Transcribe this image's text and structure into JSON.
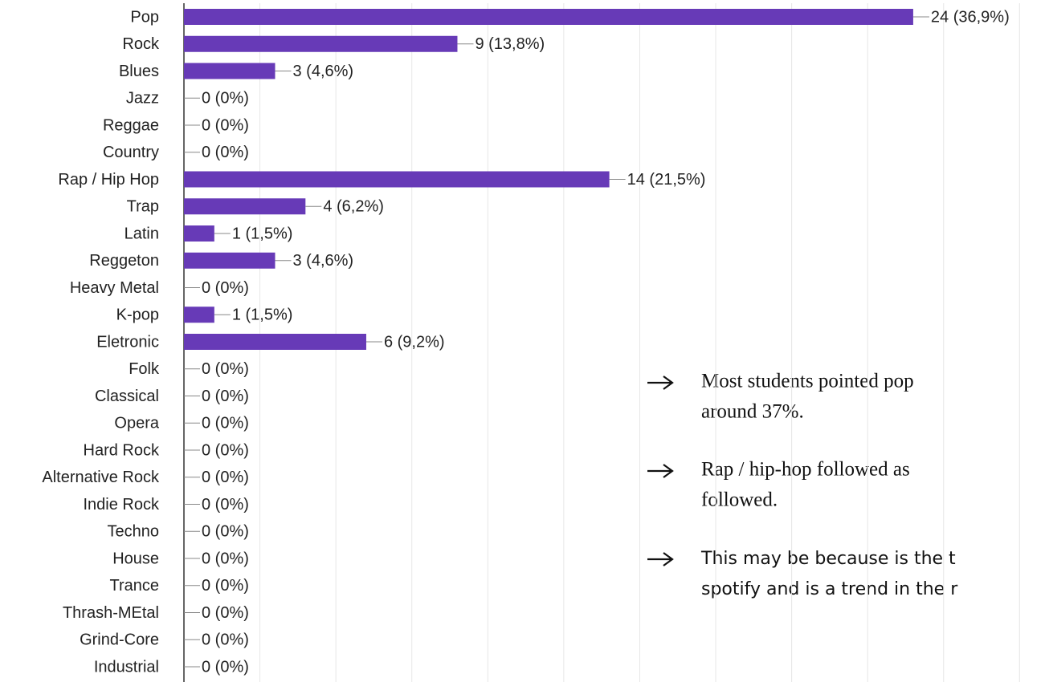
{
  "chart_data": {
    "type": "barh",
    "categories": [
      "Pop",
      "Rock",
      "Blues",
      "Jazz",
      "Reggae",
      "Country",
      "Rap / Hip Hop",
      "Trap",
      "Latin",
      "Reggeton",
      "Heavy Metal",
      "K-pop",
      "Eletronic",
      "Folk",
      "Classical",
      "Opera",
      "Hard Rock",
      "Alternative Rock",
      "Indie Rock",
      "Techno",
      "House",
      "Trance",
      "Thrash-MEtal",
      "Grind-Core",
      "Industrial"
    ],
    "values": [
      24,
      9,
      3,
      0,
      0,
      0,
      14,
      4,
      1,
      3,
      0,
      1,
      6,
      0,
      0,
      0,
      0,
      0,
      0,
      0,
      0,
      0,
      0,
      0,
      0
    ],
    "value_labels": [
      "24 (36,9%)",
      "9 (13,8%)",
      "3 (4,6%)",
      "0 (0%)",
      "0 (0%)",
      "0 (0%)",
      "14 (21,5%)",
      "4 (6,2%)",
      "1 (1,5%)",
      "3 (4,6%)",
      "0 (0%)",
      "1 (1,5%)",
      "6 (9,2%)",
      "0 (0%)",
      "0 (0%)",
      "0 (0%)",
      "0 (0%)",
      "0 (0%)",
      "0 (0%)",
      "0 (0%)",
      "0 (0%)",
      "0 (0%)",
      "0 (0%)",
      "0 (0%)",
      "0 (0%)"
    ],
    "color": "#673ab7",
    "xlim": [
      0,
      28.3
    ],
    "xticks": [
      0,
      2.5,
      5,
      7.5,
      10,
      12.5,
      15,
      17.5,
      20,
      22.5,
      25,
      27.5
    ],
    "grid": true
  },
  "notes": [
    {
      "lines": [
        "Most students pointed pop",
        "around 37%."
      ]
    },
    {
      "lines": [
        "Rap / hip-hop followed as",
        "followed."
      ]
    },
    {
      "lines": [
        "This may be because is the t",
        "spotify and is a trend in the r"
      ]
    }
  ]
}
